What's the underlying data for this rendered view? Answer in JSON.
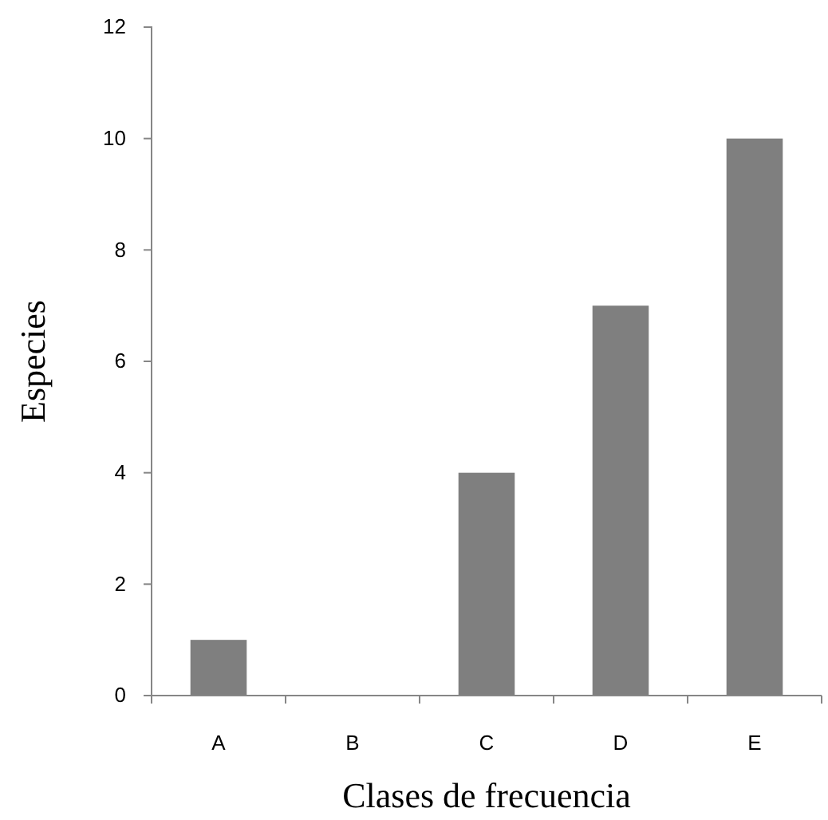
{
  "chart_data": {
    "type": "bar",
    "xlabel": "Clases de frecuencia",
    "ylabel": "Especies",
    "categories": [
      "A",
      "B",
      "C",
      "D",
      "E"
    ],
    "values": [
      1,
      0,
      4,
      7,
      10
    ],
    "color": "#7f7f7f",
    "ylim": [
      0,
      12
    ],
    "yticks": [
      0,
      2,
      4,
      6,
      8,
      10,
      12
    ],
    "grid": false
  }
}
